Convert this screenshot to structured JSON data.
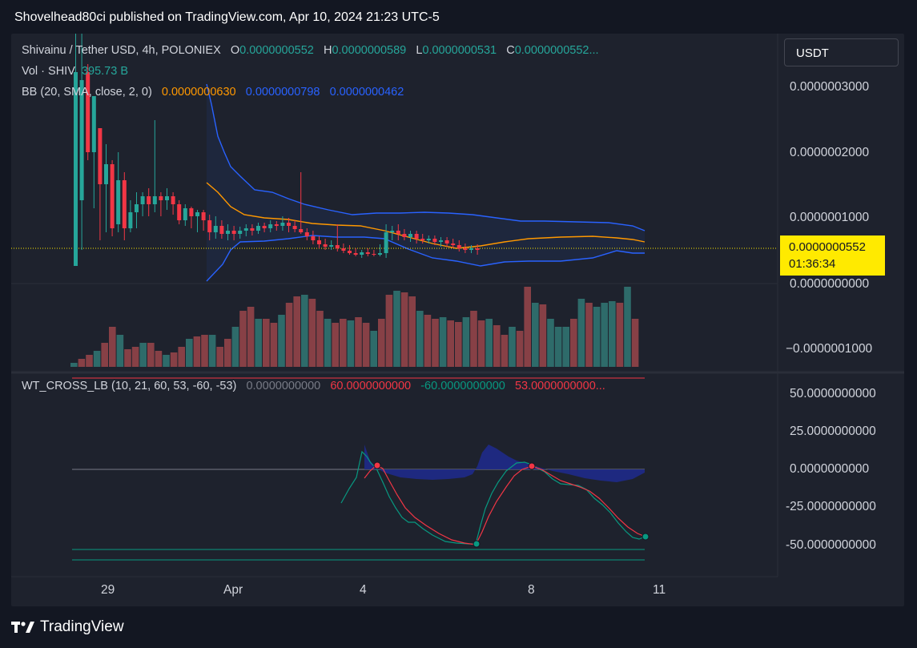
{
  "header": {
    "text": "Shovelhead80ci published on TradingView.com, Apr 10, 2024 21:23 UTC-5"
  },
  "legend": {
    "symbol": "Shivainu / Tether USD, 4h, POLONIEX",
    "o_label": "O",
    "o_val": "0.0000000552",
    "h_label": "H",
    "h_val": "0.0000000589",
    "l_label": "L",
    "l_val": "0.0000000531",
    "c_label": "C",
    "c_val": "0.0000000552...",
    "vol_label": "Vol · SHIV",
    "vol_val": "395.73 B",
    "bb_label": "BB (20, SMA, close, 2, 0)",
    "bb_mid": "0.0000000630",
    "bb_up": "0.0000000798",
    "bb_low": "0.0000000462",
    "wt_label": "WT_CROSS_LB (10, 21, 60, 53, -60, -53)",
    "wt_v1": "0.0000000000",
    "wt_v2": "60.0000000000",
    "wt_v3": "-60.0000000000",
    "wt_v4": "53.0000000000..."
  },
  "currency_button": "USDT",
  "price_tag": {
    "value": "0.0000000552",
    "countdown": "01:36:34"
  },
  "price_axis": [
    "0.0000003000",
    "0.0000002000",
    "0.0000001000",
    "0.0000000000",
    "−0.0000001000"
  ],
  "wt_axis": [
    "50.0000000000",
    "25.0000000000",
    "0.0000000000",
    "-25.0000000000",
    "-50.0000000000"
  ],
  "time_axis": [
    "29",
    "Apr",
    "4",
    "8",
    "11"
  ],
  "footer": {
    "brand": "TradingView"
  },
  "colors": {
    "up": "#26a69a",
    "down": "#f23645",
    "bb_mid": "#ff9800",
    "bb_band": "#2962ff",
    "wt1": "#089981",
    "wt2": "#f23645",
    "price_line": "#ffea00"
  }
}
